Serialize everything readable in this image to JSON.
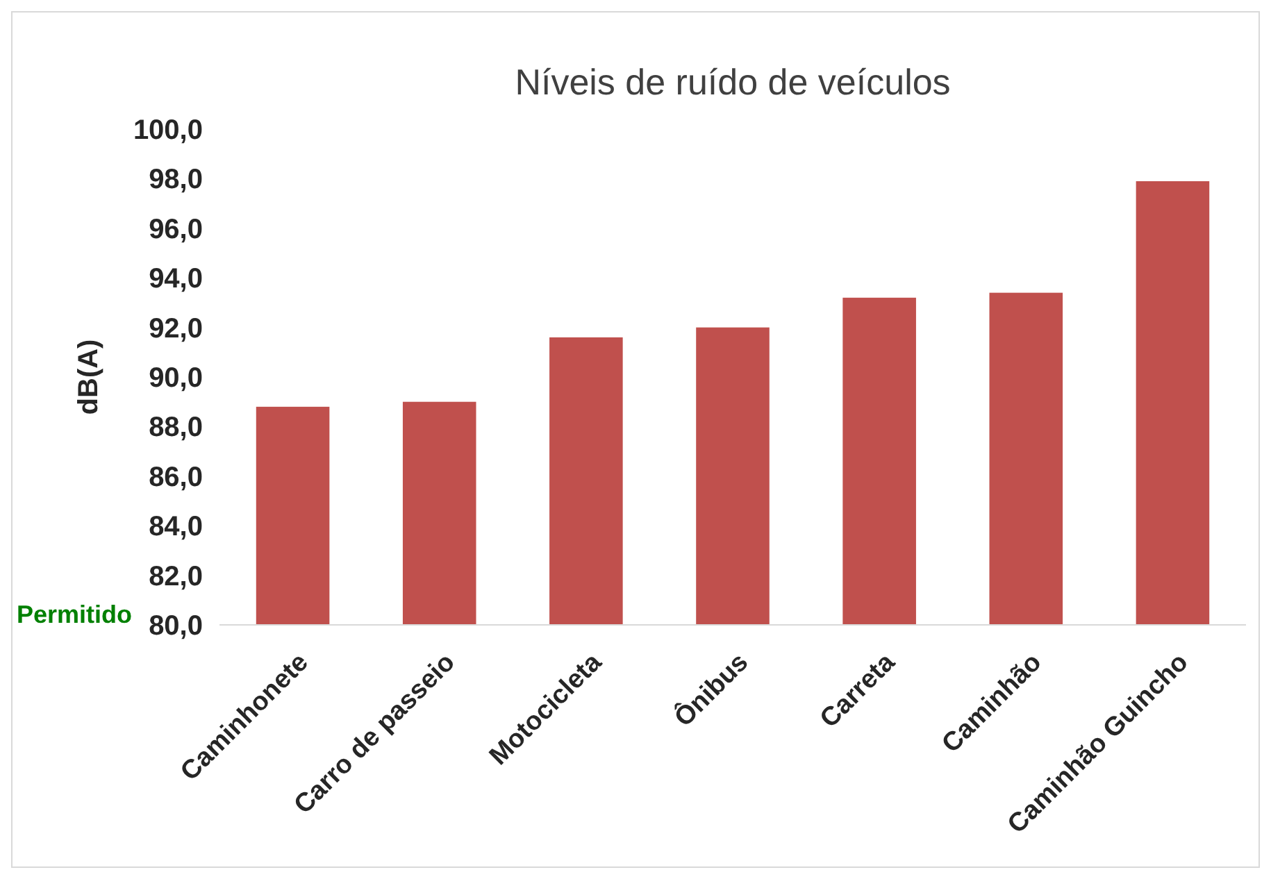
{
  "chart_data": {
    "type": "bar",
    "title": "Níveis de ruído de veículos",
    "ylabel": "dB(A)",
    "categories": [
      "Caminhonete",
      "Carro de passeio",
      "Motocicleta",
      "Ônibus",
      "Carreta",
      "Caminhão",
      "Caminhão Guincho"
    ],
    "values": [
      88.8,
      89.0,
      91.6,
      92.0,
      93.2,
      93.4,
      97.9
    ],
    "color": "#c0504d",
    "ylim": [
      80,
      100
    ],
    "yticks": [
      {
        "value": 80,
        "label": "80,0"
      },
      {
        "value": 82,
        "label": "82,0"
      },
      {
        "value": 84,
        "label": "84,0"
      },
      {
        "value": 86,
        "label": "86,0"
      },
      {
        "value": 88,
        "label": "88,0"
      },
      {
        "value": 90,
        "label": "90,0"
      },
      {
        "value": 92,
        "label": "92,0"
      },
      {
        "value": 94,
        "label": "94,0"
      },
      {
        "value": 96,
        "label": "96,0"
      },
      {
        "value": 98,
        "label": "98,0"
      },
      {
        "value": 100,
        "label": "100,0"
      }
    ],
    "annotations": [
      "Permitido"
    ],
    "grid": false
  }
}
